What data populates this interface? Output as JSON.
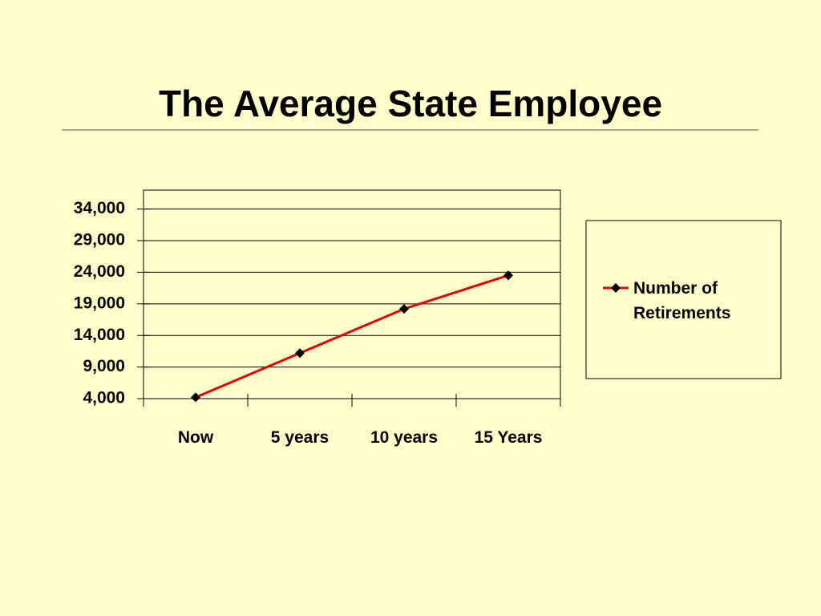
{
  "chart_data": {
    "type": "line",
    "title": "The Average State Employee",
    "categories": [
      "Now",
      "5 years",
      "10 years",
      "15 Years"
    ],
    "series": [
      {
        "name": "Number of Retirements",
        "color": "#e00000",
        "values": [
          4200,
          11200,
          18200,
          23500
        ]
      }
    ],
    "ylim": [
      4000,
      37000
    ],
    "yticks": [
      {
        "value": 4000,
        "label": "4,000"
      },
      {
        "value": 9000,
        "label": "9,000"
      },
      {
        "value": 14000,
        "label": "14,000"
      },
      {
        "value": 19000,
        "label": "19,000"
      },
      {
        "value": 24000,
        "label": "24,000"
      },
      {
        "value": 29000,
        "label": "29,000"
      },
      {
        "value": 34000,
        "label": "34,000"
      }
    ],
    "grid": true,
    "legend": "right"
  }
}
